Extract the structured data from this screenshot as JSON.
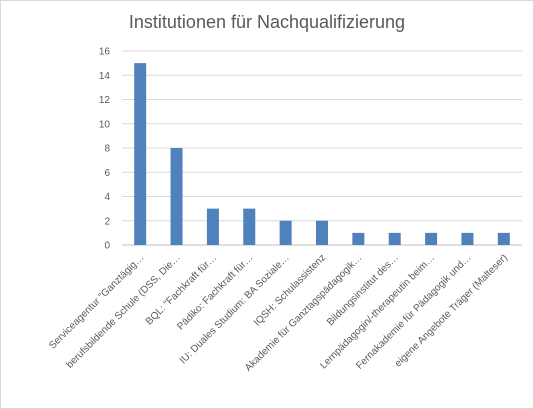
{
  "chart_data": {
    "type": "bar",
    "title": "Institutionen für Nachqualifizierung",
    "xlabel": "",
    "ylabel": "",
    "ylim": [
      0,
      16
    ],
    "yticks": [
      0,
      2,
      4,
      6,
      8,
      10,
      12,
      14,
      16
    ],
    "grid": true,
    "legend": "none",
    "bar_color": "#4F81BD",
    "categories": [
      "Serviceagentur \"Ganztägig…",
      "berufsbildende Schule (DSS, Die…",
      "BQL: \"Fachkraft für…",
      "Pädiko: Fachkraft für…",
      "IU: Duales Studium: BA Soziale…",
      "IQSH: Schulassistenz",
      "Akademie für Ganztagspädagogik…",
      "Bildungsinstitut des…",
      "Lernpädagogin/-therapeutin beim…",
      "Fernakademie für Pädagogik und…",
      "eigene Angebote Träger (Malteser)"
    ],
    "values": [
      15,
      8,
      3,
      3,
      2,
      2,
      1,
      1,
      1,
      1,
      1
    ]
  }
}
